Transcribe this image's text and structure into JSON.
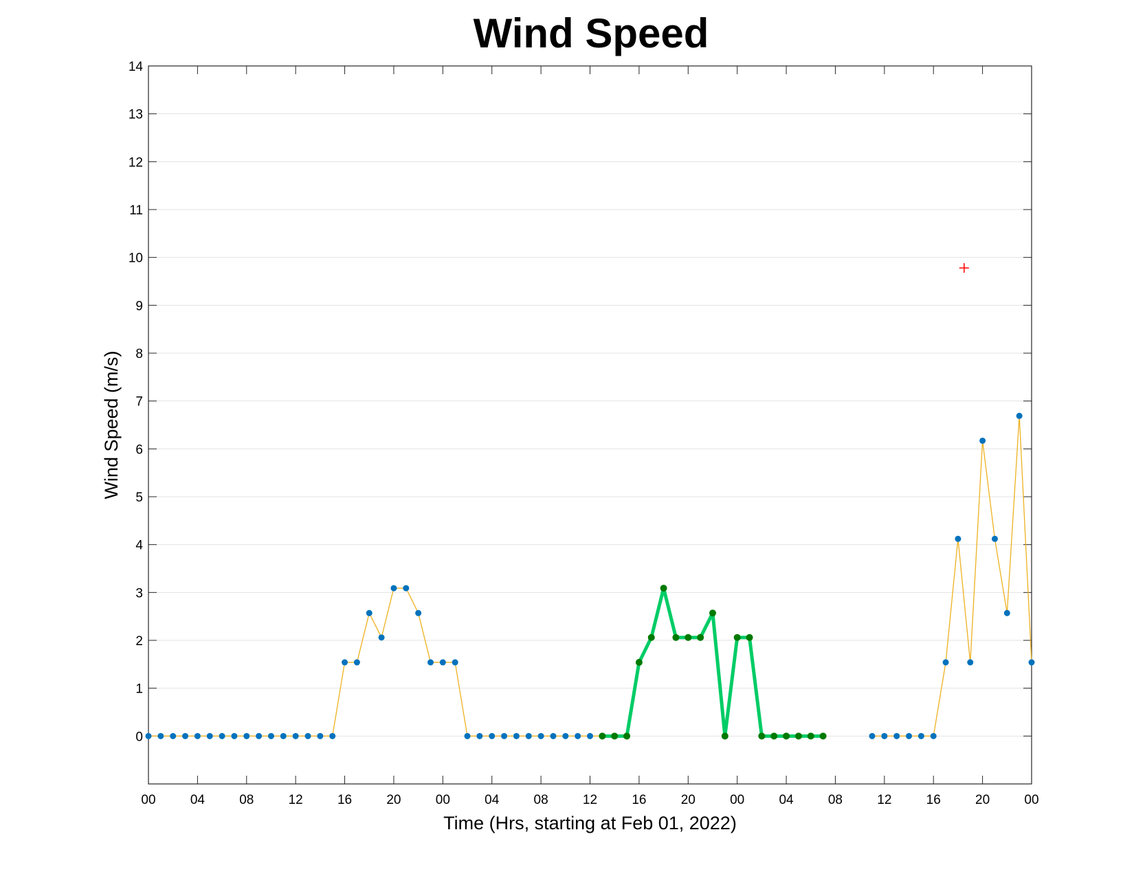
{
  "chart_data": {
    "type": "line",
    "title": "Wind Speed",
    "xlabel": "Time (Hrs, starting at Feb 01, 2022)",
    "ylabel": "Wind Speed (m/s)",
    "xlim": [
      0,
      72
    ],
    "ylim": [
      -1,
      14
    ],
    "x_unit": "hours since Feb 01, 2022 00:00",
    "grid": "horizontal",
    "xticks": [
      0,
      4,
      8,
      12,
      16,
      20,
      24,
      28,
      32,
      36,
      40,
      44,
      48,
      52,
      56,
      60,
      64,
      68,
      72
    ],
    "xtick_labels": [
      "00",
      "04",
      "08",
      "12",
      "16",
      "20",
      "00",
      "04",
      "08",
      "12",
      "16",
      "20",
      "00",
      "04",
      "08",
      "12",
      "16",
      "20",
      "00"
    ],
    "yticks": [
      0,
      1,
      2,
      3,
      4,
      5,
      6,
      7,
      8,
      9,
      10,
      11,
      12,
      13,
      14
    ],
    "ytick_labels": [
      "0",
      "1",
      "2",
      "3",
      "4",
      "5",
      "6",
      "7",
      "8",
      "9",
      "10",
      "11",
      "12",
      "13",
      "14"
    ],
    "series": [
      {
        "style": "thin-line-with-markers",
        "line_color": "#EDB120",
        "marker_color": "#0072BD",
        "segments": [
          {
            "x": [
              0,
              1,
              2,
              3,
              4,
              5,
              6,
              7,
              8,
              9,
              10,
              11,
              12,
              13,
              14,
              15,
              16,
              17,
              18,
              19,
              20,
              21,
              22,
              23,
              24,
              25,
              26,
              27,
              28,
              29,
              30,
              31,
              32,
              33,
              34,
              35,
              36,
              37,
              38
            ],
            "y": [
              0,
              0,
              0,
              0,
              0,
              0,
              0,
              0,
              0,
              0,
              0,
              0,
              0,
              0,
              0,
              0,
              1.54,
              1.54,
              2.57,
              2.06,
              3.09,
              3.09,
              2.57,
              1.54,
              1.54,
              1.54,
              0,
              0,
              0,
              0,
              0,
              0,
              0,
              0,
              0,
              0,
              0,
              0,
              0
            ]
          },
          {
            "x": [
              59,
              60,
              61,
              62,
              63,
              64,
              65,
              66,
              67,
              68,
              69,
              70,
              71,
              72
            ],
            "y": [
              0,
              0,
              0,
              0,
              0,
              0,
              1.54,
              4.12,
              1.54,
              6.17,
              4.12,
              2.57,
              6.69,
              1.54
            ]
          }
        ]
      },
      {
        "style": "thick-line-with-markers",
        "line_color": "#00CC66",
        "marker_color": "#007A00",
        "segments": [
          {
            "x": [
              37,
              38,
              39,
              40,
              41,
              42,
              43,
              44,
              45,
              46,
              47,
              48,
              49,
              50,
              51,
              52,
              53,
              54,
              55
            ],
            "y": [
              0,
              0,
              0,
              1.54,
              2.06,
              3.09,
              2.06,
              2.06,
              2.06,
              2.57,
              0,
              2.06,
              2.06,
              0,
              0,
              0,
              0,
              0,
              0
            ]
          }
        ]
      },
      {
        "style": "plus-marker",
        "marker_color": "#FF0000",
        "points": [
          {
            "x": 66.5,
            "y": 9.78
          }
        ]
      }
    ]
  }
}
